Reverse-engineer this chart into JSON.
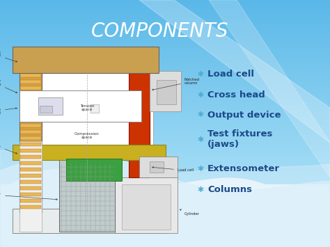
{
  "title": "COMPONENTS",
  "title_color": "#FFFFFF",
  "title_fontsize": 20,
  "bg_blue_top": "#5BB8E8",
  "bg_blue_bottom": "#A8D8F0",
  "bullet_items": [
    "Load cell",
    "Cross head",
    "Output device",
    "Test fixtures\n(jaws)",
    "Extensometer",
    "Columns"
  ],
  "bullet_color": "#1a4a8a",
  "bullet_fontsize": 9.5,
  "star_color": "#4aaad0",
  "diag_left_col_color": "#D4A040",
  "diag_right_col_color": "#CC3300",
  "diag_top_beam_color": "#C8A050",
  "diag_table_color": "#C8B020",
  "diag_green_color": "#3aA040",
  "diag_white": "#FFFFFF",
  "diag_grey": "#C8D0D0",
  "diag_light": "#E8ECEC"
}
